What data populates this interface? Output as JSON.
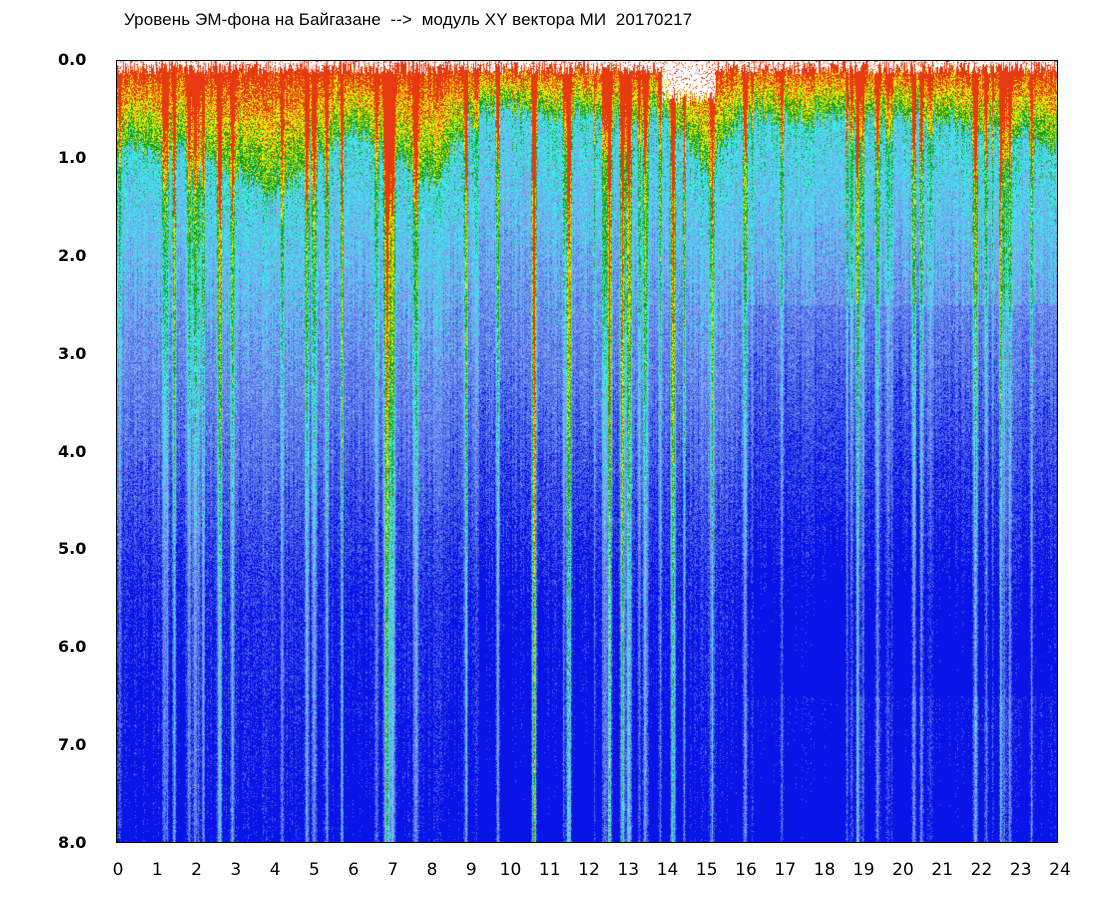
{
  "chart_data": {
    "type": "heatmap",
    "title": "Уровень ЭМ-фона на Байгазане  -->  модуль XY вектора МИ  20170217",
    "xlabel": "",
    "ylabel": "",
    "xlim": [
      0,
      24
    ],
    "ylim": [
      8.0,
      0.0
    ],
    "x_ticks": [
      "0",
      "1",
      "2",
      "3",
      "4",
      "5",
      "6",
      "7",
      "8",
      "9",
      "10",
      "11",
      "12",
      "13",
      "14",
      "15",
      "16",
      "17",
      "18",
      "19",
      "20",
      "21",
      "22",
      "23",
      "24"
    ],
    "y_ticks": [
      "0.0",
      "1.0",
      "2.0",
      "3.0",
      "4.0",
      "5.0",
      "6.0",
      "7.0",
      "8.0"
    ],
    "grid": false,
    "legend": "none",
    "colormap": [
      "#0a14e6",
      "#4a64e8",
      "#7aa0ee",
      "#3ee8e8",
      "#1aa020",
      "#e8e800",
      "#e83a10"
    ],
    "background_color": "#5a7ae8",
    "high_intensity_band_depth_hours": [
      [
        0.0,
        0.8
      ],
      [
        1.0,
        0.95
      ],
      [
        2.0,
        0.9
      ],
      [
        3.0,
        1.1
      ],
      [
        4.0,
        1.4
      ],
      [
        5.0,
        1.0
      ],
      [
        6.0,
        0.7
      ],
      [
        7.0,
        0.9
      ],
      [
        8.0,
        1.3
      ],
      [
        9.0,
        0.6
      ],
      [
        10.0,
        0.5
      ],
      [
        11.0,
        0.55
      ],
      [
        12.0,
        0.5
      ],
      [
        13.0,
        0.6
      ],
      [
        14.0,
        0.5
      ],
      [
        15.0,
        1.1
      ],
      [
        16.0,
        0.5
      ],
      [
        17.0,
        0.6
      ],
      [
        18.0,
        0.6
      ],
      [
        19.0,
        0.55
      ],
      [
        20.0,
        0.6
      ],
      [
        21.0,
        0.6
      ],
      [
        22.0,
        0.7
      ],
      [
        23.0,
        0.7
      ],
      [
        24.0,
        0.9
      ]
    ]
  }
}
